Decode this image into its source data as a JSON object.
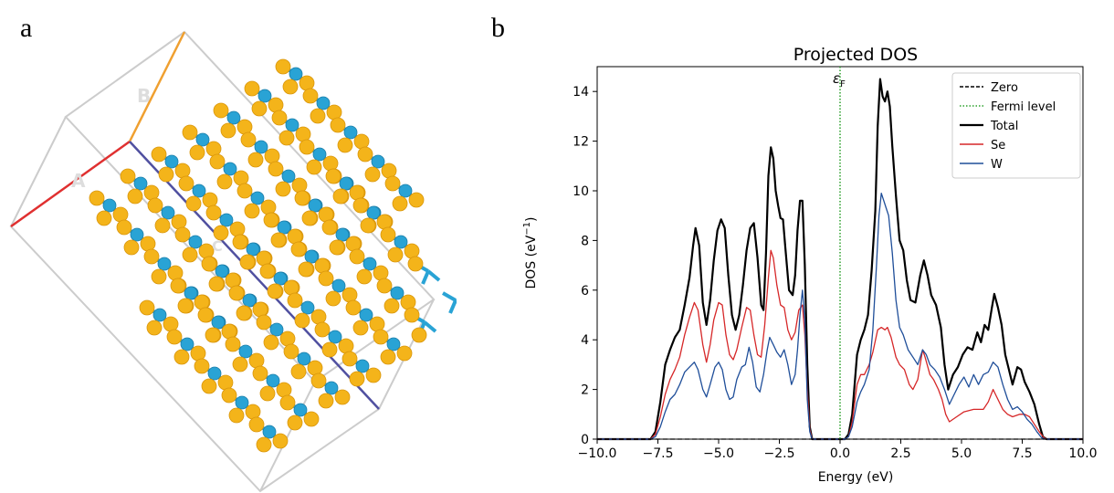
{
  "panel_a": {
    "letter": "a",
    "axis_labels": [
      "A",
      "B",
      "C"
    ],
    "colors": {
      "se_atom": "#f4b41a",
      "w_atom": "#29a3d5",
      "cell": "#cccccc",
      "axis_a": "#e03030",
      "axis_b": "#f0a030",
      "axis_c": "#5050a0"
    }
  },
  "panel_b": {
    "letter": "b"
  },
  "chart_data": {
    "type": "line",
    "title": "Projected DOS",
    "xlabel": "Energy (eV)",
    "ylabel_main": "DOS (eV",
    "ylabel_sup": "−1",
    "ylabel_close": ")",
    "xlim": [
      -10,
      10
    ],
    "ylim": [
      0,
      15
    ],
    "xticks": [
      -10,
      -7.5,
      -5,
      -2.5,
      0,
      2.5,
      5,
      7.5,
      10
    ],
    "xtick_labels": [
      "−10.0",
      "−7.5",
      "−5.0",
      "−2.5",
      "0.0",
      "2.5",
      "5.0",
      "7.5",
      "10.0"
    ],
    "yticks": [
      0,
      2,
      4,
      6,
      8,
      10,
      12,
      14
    ],
    "ytick_labels": [
      "0",
      "2",
      "4",
      "6",
      "8",
      "10",
      "12",
      "14"
    ],
    "fermi_level": 0,
    "fermi_label_main": "ε",
    "fermi_label_sub": "F",
    "legend_position": "top-right",
    "grid": false,
    "legend": [
      {
        "name": "Zero",
        "color": "#000000",
        "style": "dashed"
      },
      {
        "name": "Fermi level",
        "color": "#2ca02c",
        "style": "dotted"
      },
      {
        "name": "Total",
        "color": "#000000",
        "style": "solid"
      },
      {
        "name": "Se",
        "color": "#d62728",
        "style": "solid"
      },
      {
        "name": "W",
        "color": "#1f4e99",
        "style": "solid"
      }
    ],
    "series": [
      {
        "name": "Total",
        "color": "#000000",
        "points": [
          [
            -10,
            0
          ],
          [
            -7.8,
            0
          ],
          [
            -7.6,
            0.3
          ],
          [
            -7.4,
            1.5
          ],
          [
            -7.2,
            3.0
          ],
          [
            -7.0,
            3.6
          ],
          [
            -6.8,
            4.1
          ],
          [
            -6.6,
            4.4
          ],
          [
            -6.4,
            5.4
          ],
          [
            -6.2,
            6.5
          ],
          [
            -6.05,
            7.8
          ],
          [
            -5.95,
            8.5
          ],
          [
            -5.8,
            7.8
          ],
          [
            -5.65,
            5.5
          ],
          [
            -5.5,
            4.6
          ],
          [
            -5.35,
            5.6
          ],
          [
            -5.2,
            7.2
          ],
          [
            -5.05,
            8.4
          ],
          [
            -4.9,
            8.85
          ],
          [
            -4.75,
            8.5
          ],
          [
            -4.6,
            6.6
          ],
          [
            -4.45,
            5.0
          ],
          [
            -4.3,
            4.4
          ],
          [
            -4.15,
            5.0
          ],
          [
            -4.0,
            6.2
          ],
          [
            -3.85,
            7.6
          ],
          [
            -3.7,
            8.5
          ],
          [
            -3.55,
            8.7
          ],
          [
            -3.4,
            7.3
          ],
          [
            -3.25,
            5.4
          ],
          [
            -3.15,
            5.2
          ],
          [
            -3.05,
            7.5
          ],
          [
            -2.95,
            10.6
          ],
          [
            -2.85,
            11.75
          ],
          [
            -2.75,
            11.3
          ],
          [
            -2.65,
            10.0
          ],
          [
            -2.55,
            9.4
          ],
          [
            -2.45,
            8.9
          ],
          [
            -2.35,
            8.85
          ],
          [
            -2.25,
            7.7
          ],
          [
            -2.1,
            6.0
          ],
          [
            -1.95,
            5.8
          ],
          [
            -1.85,
            6.6
          ],
          [
            -1.75,
            8.4
          ],
          [
            -1.65,
            9.6
          ],
          [
            -1.55,
            9.6
          ],
          [
            -1.45,
            7.0
          ],
          [
            -1.35,
            3.0
          ],
          [
            -1.25,
            0.5
          ],
          [
            -1.15,
            0
          ],
          [
            0.2,
            0
          ],
          [
            0.35,
            0.2
          ],
          [
            0.5,
            1.0
          ],
          [
            0.7,
            3.4
          ],
          [
            0.85,
            4.0
          ],
          [
            1.0,
            4.4
          ],
          [
            1.15,
            5.0
          ],
          [
            1.3,
            6.8
          ],
          [
            1.45,
            9.2
          ],
          [
            1.55,
            12.6
          ],
          [
            1.65,
            14.5
          ],
          [
            1.75,
            13.8
          ],
          [
            1.85,
            13.6
          ],
          [
            1.95,
            14.0
          ],
          [
            2.05,
            13.4
          ],
          [
            2.15,
            11.8
          ],
          [
            2.3,
            9.8
          ],
          [
            2.45,
            8.0
          ],
          [
            2.6,
            7.6
          ],
          [
            2.75,
            6.4
          ],
          [
            2.9,
            5.6
          ],
          [
            3.1,
            5.5
          ],
          [
            3.3,
            6.6
          ],
          [
            3.45,
            7.2
          ],
          [
            3.6,
            6.6
          ],
          [
            3.75,
            5.8
          ],
          [
            3.95,
            5.4
          ],
          [
            4.15,
            4.5
          ],
          [
            4.3,
            3.0
          ],
          [
            4.45,
            2.0
          ],
          [
            4.65,
            2.6
          ],
          [
            4.85,
            2.9
          ],
          [
            5.05,
            3.4
          ],
          [
            5.25,
            3.7
          ],
          [
            5.45,
            3.6
          ],
          [
            5.65,
            4.3
          ],
          [
            5.8,
            3.9
          ],
          [
            5.95,
            4.6
          ],
          [
            6.1,
            4.4
          ],
          [
            6.25,
            5.3
          ],
          [
            6.35,
            5.85
          ],
          [
            6.5,
            5.3
          ],
          [
            6.65,
            4.6
          ],
          [
            6.8,
            3.4
          ],
          [
            6.95,
            2.8
          ],
          [
            7.1,
            2.2
          ],
          [
            7.3,
            2.9
          ],
          [
            7.45,
            2.8
          ],
          [
            7.6,
            2.3
          ],
          [
            7.8,
            1.9
          ],
          [
            8.0,
            1.4
          ],
          [
            8.2,
            0.6
          ],
          [
            8.35,
            0.1
          ],
          [
            8.5,
            0
          ],
          [
            10,
            0
          ]
        ]
      },
      {
        "name": "Se",
        "color": "#d62728",
        "points": [
          [
            -10,
            0
          ],
          [
            -7.8,
            0
          ],
          [
            -7.6,
            0.2
          ],
          [
            -7.4,
            0.9
          ],
          [
            -7.2,
            1.8
          ],
          [
            -7.0,
            2.4
          ],
          [
            -6.8,
            2.8
          ],
          [
            -6.6,
            3.3
          ],
          [
            -6.4,
            4.2
          ],
          [
            -6.2,
            4.9
          ],
          [
            -6.0,
            5.5
          ],
          [
            -5.85,
            5.2
          ],
          [
            -5.65,
            3.8
          ],
          [
            -5.5,
            3.1
          ],
          [
            -5.35,
            3.8
          ],
          [
            -5.2,
            4.8
          ],
          [
            -5.0,
            5.5
          ],
          [
            -4.85,
            5.4
          ],
          [
            -4.7,
            4.2
          ],
          [
            -4.55,
            3.4
          ],
          [
            -4.4,
            3.2
          ],
          [
            -4.25,
            3.6
          ],
          [
            -4.05,
            4.5
          ],
          [
            -3.85,
            5.3
          ],
          [
            -3.7,
            5.2
          ],
          [
            -3.55,
            4.2
          ],
          [
            -3.4,
            3.4
          ],
          [
            -3.25,
            3.3
          ],
          [
            -3.1,
            4.6
          ],
          [
            -2.95,
            6.5
          ],
          [
            -2.85,
            7.6
          ],
          [
            -2.75,
            7.3
          ],
          [
            -2.6,
            6.2
          ],
          [
            -2.45,
            5.4
          ],
          [
            -2.3,
            5.3
          ],
          [
            -2.15,
            4.4
          ],
          [
            -2.0,
            4.0
          ],
          [
            -1.85,
            4.3
          ],
          [
            -1.7,
            5.2
          ],
          [
            -1.55,
            5.4
          ],
          [
            -1.45,
            4.2
          ],
          [
            -1.35,
            2.0
          ],
          [
            -1.25,
            0.4
          ],
          [
            -1.15,
            0
          ],
          [
            0.2,
            0
          ],
          [
            0.35,
            0.1
          ],
          [
            0.5,
            0.7
          ],
          [
            0.7,
            2.2
          ],
          [
            0.85,
            2.6
          ],
          [
            1.0,
            2.6
          ],
          [
            1.2,
            3.0
          ],
          [
            1.35,
            3.5
          ],
          [
            1.55,
            4.4
          ],
          [
            1.7,
            4.5
          ],
          [
            1.85,
            4.4
          ],
          [
            1.95,
            4.5
          ],
          [
            2.1,
            4.1
          ],
          [
            2.3,
            3.3
          ],
          [
            2.45,
            3.0
          ],
          [
            2.65,
            2.8
          ],
          [
            2.85,
            2.2
          ],
          [
            3.0,
            2.0
          ],
          [
            3.2,
            2.4
          ],
          [
            3.4,
            3.6
          ],
          [
            3.5,
            3.3
          ],
          [
            3.7,
            2.6
          ],
          [
            3.85,
            2.4
          ],
          [
            4.05,
            2.0
          ],
          [
            4.2,
            1.6
          ],
          [
            4.35,
            1.0
          ],
          [
            4.5,
            0.7
          ],
          [
            4.8,
            0.9
          ],
          [
            5.1,
            1.1
          ],
          [
            5.5,
            1.2
          ],
          [
            5.9,
            1.2
          ],
          [
            6.1,
            1.5
          ],
          [
            6.3,
            2.0
          ],
          [
            6.5,
            1.6
          ],
          [
            6.7,
            1.2
          ],
          [
            6.9,
            1.0
          ],
          [
            7.1,
            0.9
          ],
          [
            7.4,
            1.0
          ],
          [
            7.6,
            1.0
          ],
          [
            7.8,
            0.9
          ],
          [
            8.0,
            0.6
          ],
          [
            8.2,
            0.3
          ],
          [
            8.4,
            0.05
          ],
          [
            8.5,
            0
          ],
          [
            10,
            0
          ]
        ]
      },
      {
        "name": "W",
        "color": "#1f4e99",
        "points": [
          [
            -10,
            0
          ],
          [
            -7.8,
            0
          ],
          [
            -7.6,
            0.1
          ],
          [
            -7.4,
            0.5
          ],
          [
            -7.2,
            1.1
          ],
          [
            -7.0,
            1.6
          ],
          [
            -6.8,
            1.8
          ],
          [
            -6.6,
            2.2
          ],
          [
            -6.4,
            2.7
          ],
          [
            -6.2,
            2.9
          ],
          [
            -6.0,
            3.1
          ],
          [
            -5.85,
            2.8
          ],
          [
            -5.65,
            2.0
          ],
          [
            -5.5,
            1.7
          ],
          [
            -5.35,
            2.2
          ],
          [
            -5.15,
            2.9
          ],
          [
            -5.0,
            3.1
          ],
          [
            -4.85,
            2.8
          ],
          [
            -4.7,
            2.0
          ],
          [
            -4.55,
            1.6
          ],
          [
            -4.4,
            1.7
          ],
          [
            -4.25,
            2.4
          ],
          [
            -4.05,
            2.9
          ],
          [
            -3.9,
            3.0
          ],
          [
            -3.75,
            3.7
          ],
          [
            -3.6,
            3.1
          ],
          [
            -3.45,
            2.1
          ],
          [
            -3.3,
            1.9
          ],
          [
            -3.15,
            2.6
          ],
          [
            -3.0,
            3.6
          ],
          [
            -2.9,
            4.1
          ],
          [
            -2.75,
            3.8
          ],
          [
            -2.6,
            3.5
          ],
          [
            -2.45,
            3.3
          ],
          [
            -2.3,
            3.6
          ],
          [
            -2.15,
            3.0
          ],
          [
            -2.0,
            2.2
          ],
          [
            -1.85,
            2.6
          ],
          [
            -1.75,
            3.6
          ],
          [
            -1.65,
            5.0
          ],
          [
            -1.55,
            6.0
          ],
          [
            -1.45,
            4.8
          ],
          [
            -1.35,
            1.6
          ],
          [
            -1.25,
            0.3
          ],
          [
            -1.15,
            0
          ],
          [
            0.2,
            0
          ],
          [
            0.35,
            0.1
          ],
          [
            0.5,
            0.5
          ],
          [
            0.7,
            1.5
          ],
          [
            0.85,
            1.9
          ],
          [
            1.0,
            2.2
          ],
          [
            1.2,
            2.8
          ],
          [
            1.35,
            4.4
          ],
          [
            1.5,
            7.0
          ],
          [
            1.6,
            9.0
          ],
          [
            1.7,
            9.9
          ],
          [
            1.8,
            9.6
          ],
          [
            1.9,
            9.3
          ],
          [
            2.0,
            9.0
          ],
          [
            2.15,
            7.5
          ],
          [
            2.3,
            5.6
          ],
          [
            2.45,
            4.5
          ],
          [
            2.6,
            4.2
          ],
          [
            2.8,
            3.6
          ],
          [
            3.0,
            3.3
          ],
          [
            3.2,
            3.0
          ],
          [
            3.4,
            3.6
          ],
          [
            3.55,
            3.4
          ],
          [
            3.7,
            3.0
          ],
          [
            3.9,
            2.8
          ],
          [
            4.1,
            2.5
          ],
          [
            4.3,
            2.0
          ],
          [
            4.5,
            1.4
          ],
          [
            4.7,
            1.8
          ],
          [
            4.9,
            2.2
          ],
          [
            5.1,
            2.5
          ],
          [
            5.3,
            2.1
          ],
          [
            5.5,
            2.6
          ],
          [
            5.7,
            2.2
          ],
          [
            5.9,
            2.6
          ],
          [
            6.1,
            2.7
          ],
          [
            6.3,
            3.1
          ],
          [
            6.5,
            2.9
          ],
          [
            6.7,
            2.2
          ],
          [
            6.9,
            1.6
          ],
          [
            7.1,
            1.2
          ],
          [
            7.3,
            1.3
          ],
          [
            7.5,
            1.1
          ],
          [
            7.7,
            0.8
          ],
          [
            7.9,
            0.6
          ],
          [
            8.1,
            0.3
          ],
          [
            8.3,
            0.05
          ],
          [
            8.45,
            0
          ],
          [
            10,
            0
          ]
        ]
      }
    ]
  }
}
